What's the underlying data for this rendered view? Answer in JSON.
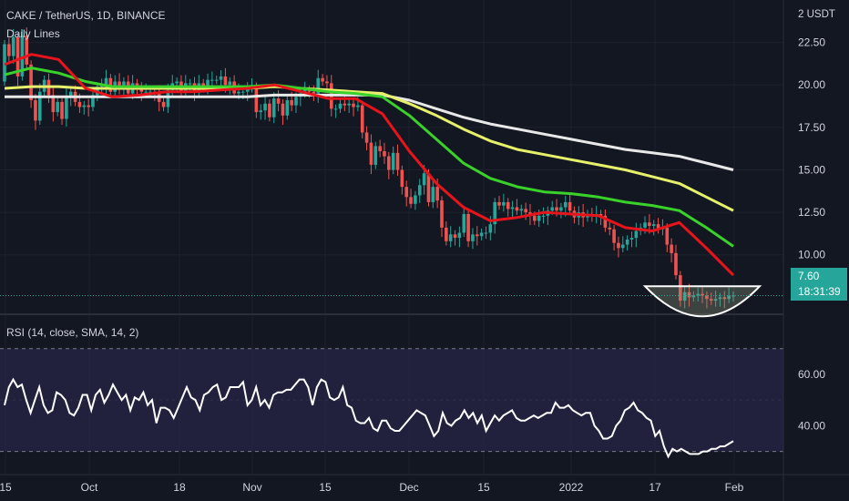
{
  "header": {
    "symbol_line": "CAKE / TetherUS, 1D, BINANCE",
    "indicator": "Daily Lines",
    "currency": "2 USDT"
  },
  "rsi": {
    "label": "RSI (14, close, SMA, 14, 2)",
    "upper_band": 70,
    "lower_band": 30
  },
  "price_tag": {
    "price": "7.60",
    "countdown": "18:31:39"
  },
  "colors": {
    "background": "#131722",
    "up": "#26a69a",
    "down": "#ef5350",
    "ema_fast": "#e8141b",
    "ema_mid": "#3ad12a",
    "ema_slow": "#e6f06a",
    "ema_long": "#e8e8e8",
    "rsi_line": "#ffffff",
    "rsi_band": "#2a2748"
  },
  "chart_data": [
    {
      "type": "candlestick",
      "title": "CAKE / TetherUS, 1D, BINANCE",
      "x_tick_labels": [
        "15",
        "Oct",
        "18",
        "Nov",
        "15",
        "Dec",
        "15",
        "2022",
        "17",
        "Feb"
      ],
      "y_tick_labels": [
        "22.50",
        "20.00",
        "17.50",
        "15.00",
        "12.50",
        "10.00"
      ],
      "ylim": [
        6.5,
        25
      ],
      "last_price": 7.6,
      "candles": [
        [
          20.2,
          22.4
        ],
        [
          22.4,
          21.7
        ],
        [
          21.7,
          22.8
        ],
        [
          22.8,
          20.5
        ],
        [
          20.5,
          22.9
        ],
        [
          22.9,
          21.2
        ],
        [
          21.2,
          19.1
        ],
        [
          19.1,
          17.9
        ],
        [
          17.9,
          19.6
        ],
        [
          19.6,
          20.3
        ],
        [
          20.3,
          19.4
        ],
        [
          19.4,
          18.4
        ],
        [
          18.4,
          19.0
        ],
        [
          19.0,
          18.0
        ],
        [
          18.0,
          19.3
        ],
        [
          19.3,
          19.6
        ],
        [
          19.6,
          19.0
        ],
        [
          19.0,
          18.7
        ],
        [
          18.7,
          18.8
        ],
        [
          18.8,
          18.7
        ],
        [
          18.7,
          19.4
        ],
        [
          19.4,
          19.9
        ],
        [
          19.9,
          20.0
        ],
        [
          20.0,
          20.4
        ],
        [
          20.4,
          19.6
        ],
        [
          19.6,
          20.2
        ],
        [
          20.2,
          19.9
        ],
        [
          19.9,
          20.2
        ],
        [
          20.2,
          19.5
        ],
        [
          19.5,
          20.1
        ],
        [
          20.1,
          19.8
        ],
        [
          19.8,
          19.6
        ],
        [
          19.6,
          19.6
        ],
        [
          19.6,
          19.6
        ],
        [
          19.6,
          19.5
        ],
        [
          19.5,
          19.0
        ],
        [
          19.0,
          18.7
        ],
        [
          18.7,
          19.7
        ],
        [
          19.7,
          20.1
        ],
        [
          20.1,
          20.2
        ],
        [
          20.2,
          19.6
        ],
        [
          19.6,
          20.1
        ],
        [
          20.1,
          20.1
        ],
        [
          20.1,
          19.6
        ],
        [
          19.6,
          20.1
        ],
        [
          20.1,
          19.9
        ],
        [
          19.9,
          20.3
        ],
        [
          20.3,
          20.3
        ],
        [
          20.3,
          20.3
        ],
        [
          20.3,
          20.5
        ],
        [
          20.5,
          20.0
        ],
        [
          20.0,
          20.2
        ],
        [
          20.2,
          19.5
        ],
        [
          19.5,
          19.6
        ],
        [
          19.6,
          19.6
        ],
        [
          19.6,
          19.8
        ],
        [
          19.8,
          19.9
        ],
        [
          19.9,
          18.4
        ],
        [
          18.4,
          18.5
        ],
        [
          18.5,
          18.9
        ],
        [
          18.9,
          18.1
        ],
        [
          18.1,
          19.2
        ],
        [
          19.2,
          18.9
        ],
        [
          18.9,
          18.2
        ],
        [
          18.2,
          19.1
        ],
        [
          19.1,
          18.8
        ],
        [
          18.8,
          19.3
        ],
        [
          19.3,
          19.5
        ],
        [
          19.5,
          19.7
        ],
        [
          19.7,
          19.6
        ],
        [
          19.6,
          19.5
        ],
        [
          19.5,
          20.4
        ],
        [
          20.4,
          20.2
        ],
        [
          20.2,
          20.1
        ],
        [
          20.1,
          18.6
        ],
        [
          18.6,
          18.6
        ],
        [
          18.6,
          18.9
        ],
        [
          18.9,
          18.8
        ],
        [
          18.8,
          18.9
        ],
        [
          18.9,
          18.7
        ],
        [
          18.7,
          18.8
        ],
        [
          18.8,
          17.2
        ],
        [
          17.2,
          16.6
        ],
        [
          16.6,
          15.3
        ],
        [
          15.3,
          16.4
        ],
        [
          16.4,
          16.1
        ],
        [
          16.1,
          15.8
        ],
        [
          15.8,
          15.0
        ],
        [
          15.0,
          16.0
        ],
        [
          16.0,
          15.0
        ],
        [
          15.0,
          14.0
        ],
        [
          14.0,
          13.4
        ],
        [
          13.4,
          13.0
        ],
        [
          13.0,
          13.5
        ],
        [
          13.5,
          14.1
        ],
        [
          14.1,
          14.8
        ],
        [
          14.8,
          13.1
        ],
        [
          13.1,
          14.0
        ],
        [
          14.0,
          13.2
        ],
        [
          13.2,
          11.6
        ],
        [
          11.6,
          10.8
        ],
        [
          10.8,
          11.2
        ],
        [
          11.2,
          11.0
        ],
        [
          11.0,
          11.3
        ],
        [
          11.3,
          12.4
        ],
        [
          12.4,
          10.8
        ],
        [
          10.8,
          11.2
        ],
        [
          11.2,
          11.1
        ],
        [
          11.1,
          11.3
        ],
        [
          11.3,
          11.3
        ],
        [
          11.3,
          11.8
        ],
        [
          11.8,
          13.1
        ],
        [
          13.1,
          12.9
        ],
        [
          12.9,
          13.1
        ],
        [
          13.1,
          12.7
        ],
        [
          12.7,
          12.8
        ],
        [
          12.8,
          12.6
        ],
        [
          12.6,
          12.7
        ],
        [
          12.7,
          12.5
        ],
        [
          12.5,
          12.3
        ],
        [
          12.3,
          12.0
        ],
        [
          12.0,
          12.3
        ],
        [
          12.3,
          12.3
        ],
        [
          12.3,
          12.6
        ],
        [
          12.6,
          12.8
        ],
        [
          12.8,
          12.6
        ],
        [
          12.6,
          12.8
        ],
        [
          12.8,
          13.1
        ],
        [
          13.1,
          12.6
        ],
        [
          12.6,
          12.2
        ],
        [
          12.2,
          12.5
        ],
        [
          12.5,
          12.2
        ],
        [
          12.2,
          12.4
        ],
        [
          12.4,
          12.3
        ],
        [
          12.3,
          12.4
        ],
        [
          12.4,
          12.3
        ],
        [
          12.3,
          11.6
        ],
        [
          11.6,
          11.5
        ],
        [
          11.5,
          10.7
        ],
        [
          10.7,
          10.4
        ],
        [
          10.4,
          10.6
        ],
        [
          10.6,
          10.9
        ],
        [
          10.9,
          11.0
        ],
        [
          11.0,
          11.4
        ],
        [
          11.4,
          11.6
        ],
        [
          11.6,
          11.9
        ],
        [
          11.9,
          11.7
        ],
        [
          11.7,
          11.8
        ],
        [
          11.8,
          11.5
        ],
        [
          11.5,
          11.6
        ],
        [
          11.6,
          10.6
        ],
        [
          10.6,
          10.1
        ],
        [
          10.1,
          8.8
        ],
        [
          8.8,
          7.3
        ],
        [
          7.3,
          7.8
        ],
        [
          7.8,
          7.5
        ],
        [
          7.5,
          7.6
        ],
        [
          7.6,
          7.7
        ],
        [
          7.7,
          7.6
        ],
        [
          7.6,
          7.4
        ],
        [
          7.4,
          7.3
        ],
        [
          7.3,
          7.4
        ],
        [
          7.4,
          7.5
        ],
        [
          7.5,
          7.4
        ],
        [
          7.4,
          7.6
        ],
        [
          7.6,
          7.6
        ]
      ],
      "series": [
        {
          "name": "",
          "color": "#e8141b",
          "values": [
            21.2,
            21.8,
            21.5,
            19.8,
            19.3,
            19.4,
            19.6,
            19.6,
            19.7,
            19.8,
            20.0,
            19.6,
            19.2,
            19.2,
            18.3,
            16.1,
            14.2,
            12.8,
            12.0,
            12.2,
            12.5,
            12.4,
            12.3,
            11.6,
            11.4,
            11.9,
            10.4,
            8.8
          ]
        },
        {
          "name": "",
          "color": "#3ad12a",
          "values": [
            20.6,
            21.0,
            20.7,
            20.2,
            19.9,
            19.9,
            19.9,
            19.9,
            19.9,
            19.9,
            20.0,
            19.8,
            19.6,
            19.5,
            19.3,
            18.2,
            16.8,
            15.4,
            14.5,
            14.0,
            13.7,
            13.6,
            13.4,
            13.1,
            12.9,
            12.6,
            11.6,
            10.5
          ]
        },
        {
          "name": "",
          "color": "#e6f06a",
          "values": [
            19.8,
            19.9,
            19.9,
            19.8,
            19.8,
            19.8,
            19.8,
            19.8,
            19.8,
            19.8,
            19.9,
            19.8,
            19.7,
            19.6,
            19.5,
            18.9,
            18.2,
            17.4,
            16.7,
            16.2,
            15.9,
            15.6,
            15.3,
            15.0,
            14.6,
            14.2,
            13.4,
            12.6
          ]
        },
        {
          "name": "",
          "color": "#e8e8e8",
          "values": [
            19.3,
            19.3,
            19.3,
            19.3,
            19.3,
            19.3,
            19.3,
            19.3,
            19.3,
            19.3,
            19.4,
            19.4,
            19.4,
            19.4,
            19.4,
            19.1,
            18.6,
            18.1,
            17.7,
            17.4,
            17.1,
            16.8,
            16.5,
            16.2,
            16.0,
            15.8,
            15.4,
            15.0
          ]
        }
      ]
    },
    {
      "type": "line",
      "title": "RSI (14, close, SMA, 14, 2)",
      "y_tick_labels": [
        "60.00",
        "40.00"
      ],
      "ylim": [
        21,
        83
      ],
      "values": [
        48,
        55,
        58,
        55,
        56,
        50,
        45,
        50,
        55,
        48,
        45,
        46,
        53,
        52,
        50,
        45,
        44,
        47,
        52,
        52,
        46,
        52,
        54,
        49,
        52,
        56,
        53,
        50,
        52,
        46,
        51,
        50,
        53,
        48,
        50,
        41,
        47,
        47,
        46,
        43,
        47,
        51,
        55,
        51,
        50,
        46,
        52,
        53,
        55,
        56,
        50,
        51,
        55,
        55,
        55,
        57,
        48,
        50,
        55,
        48,
        50,
        47,
        52,
        53,
        53,
        54,
        54,
        56,
        58,
        58,
        55,
        48,
        55,
        58,
        57,
        51,
        50,
        51,
        55,
        48,
        47,
        42,
        41,
        41,
        43,
        39,
        38,
        42,
        42,
        39,
        38,
        38,
        40,
        42,
        44,
        46,
        45,
        44,
        40,
        36,
        38,
        45,
        41,
        40,
        42,
        43,
        46,
        43,
        45,
        41,
        44,
        38,
        41,
        44,
        42,
        44,
        45,
        46,
        43,
        42,
        42,
        43,
        44,
        43,
        44,
        45,
        45,
        49,
        47,
        47,
        48,
        46,
        45,
        44,
        45,
        45,
        40,
        38,
        35,
        35,
        36,
        40,
        42,
        46,
        47,
        49,
        46,
        45,
        43,
        42,
        36,
        38,
        32,
        28,
        31,
        30,
        31,
        30,
        29,
        29,
        29,
        30,
        30,
        31,
        31,
        32,
        32,
        33,
        34
      ]
    }
  ]
}
